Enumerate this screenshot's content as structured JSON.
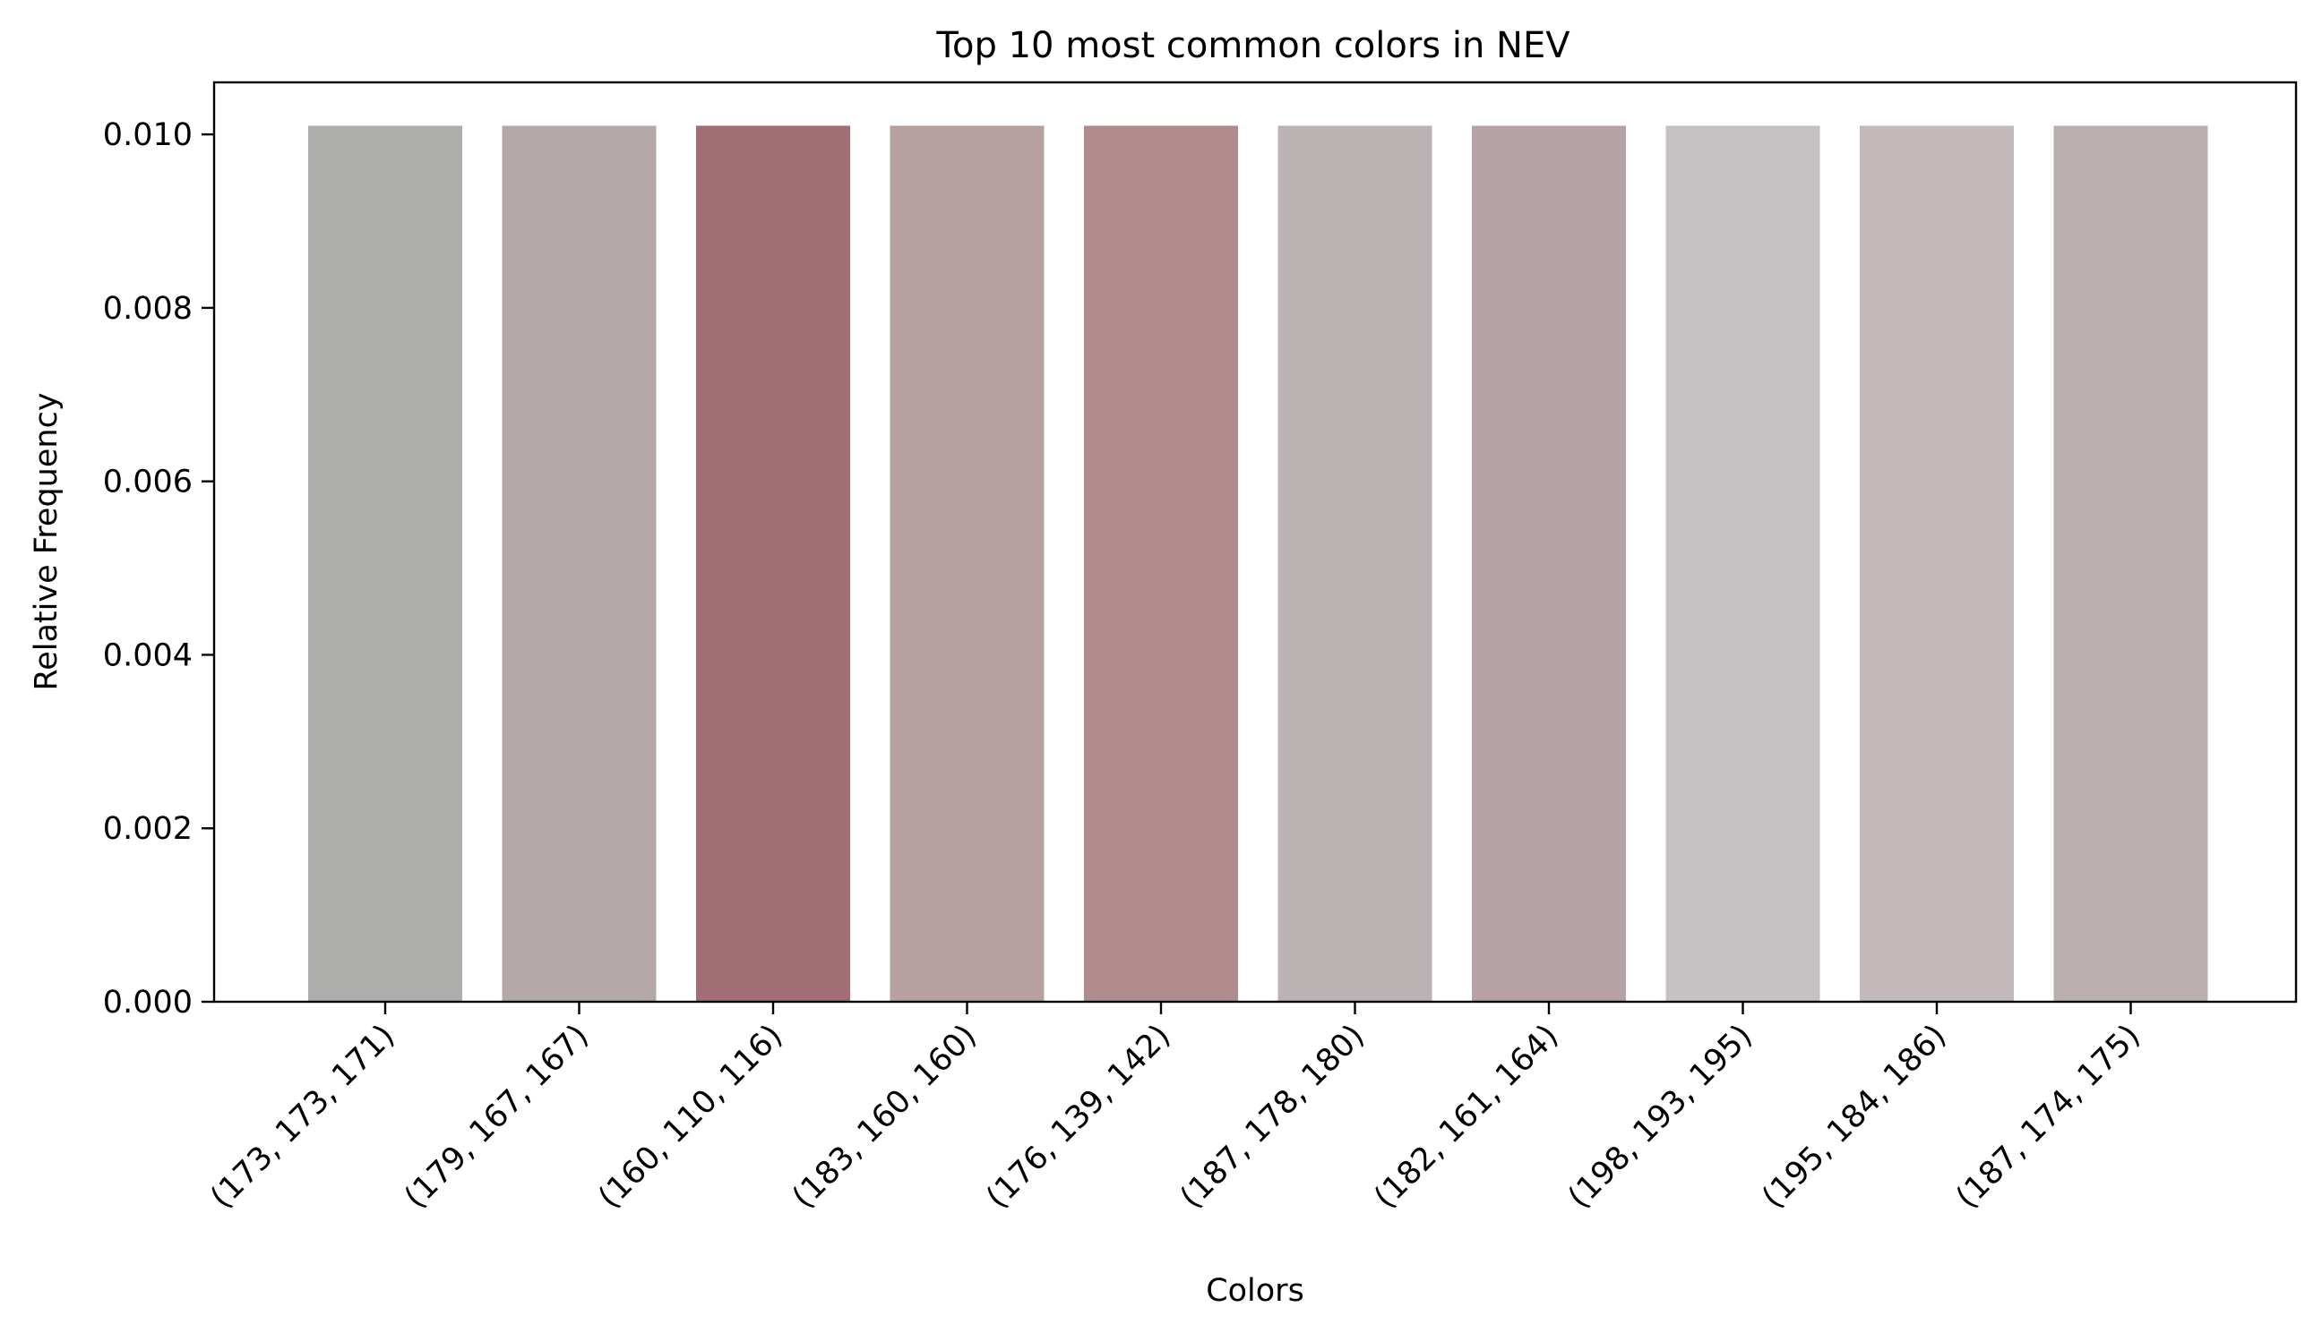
{
  "chart_data": {
    "type": "bar",
    "title": "Top 10 most common colors in NEV",
    "xlabel": "Colors",
    "ylabel": "Relative Frequency",
    "ylim": [
      0,
      0.0106
    ],
    "yticks": [
      "0.000",
      "0.002",
      "0.004",
      "0.006",
      "0.008",
      "0.010"
    ],
    "categories": [
      "(173, 173, 171)",
      "(179, 167, 167)",
      "(160, 110, 116)",
      "(183, 160, 160)",
      "(176, 139, 142)",
      "(187, 178, 180)",
      "(182, 161, 164)",
      "(198, 193, 195)",
      "(195, 184, 186)",
      "(187, 174, 175)"
    ],
    "values": [
      0.0101,
      0.0101,
      0.0101,
      0.0101,
      0.0101,
      0.0101,
      0.0101,
      0.0101,
      0.0101,
      0.0101
    ],
    "bar_colors": [
      "#adadab",
      "#b3a7a7",
      "#a06e74",
      "#b7a0a0",
      "#b08b8e",
      "#bbb2b4",
      "#b6a1a4",
      "#c6c1c3",
      "#c3b8ba",
      "#bbaeaf"
    ],
    "grid": false,
    "legend": false
  }
}
